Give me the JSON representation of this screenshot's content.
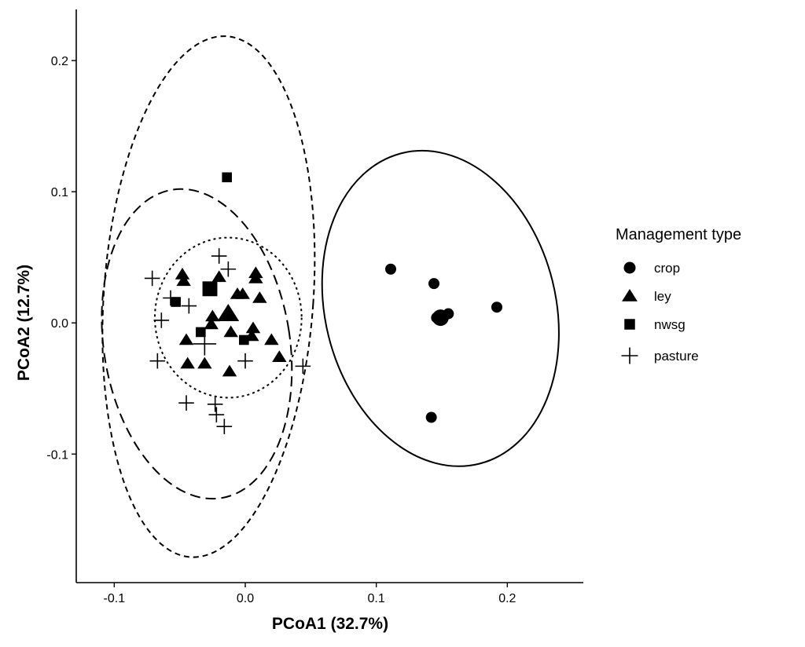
{
  "chart_data": {
    "type": "scatter",
    "xlabel": "PCoA1 (32.7%)",
    "ylabel": "PCoA2 (12.7%)",
    "xlim": [
      -0.129,
      0.258
    ],
    "ylim": [
      -0.198,
      0.239
    ],
    "xticks": [
      -0.1,
      0.0,
      0.1,
      0.2
    ],
    "xtick_labels": [
      "-0.1",
      "0.0",
      "0.1",
      "0.2"
    ],
    "yticks": [
      -0.1,
      0.0,
      0.1,
      0.2
    ],
    "ytick_labels": [
      "-0.1",
      "0.0",
      "0.1",
      "0.2"
    ],
    "grid": false,
    "legend": {
      "title": "Management type",
      "placement": "right",
      "entries": [
        {
          "label": "crop",
          "shape": "circle"
        },
        {
          "label": "ley",
          "shape": "triangle"
        },
        {
          "label": "nwsg",
          "shape": "square"
        },
        {
          "label": "pasture",
          "shape": "plus"
        }
      ]
    },
    "color": "#000000",
    "series": [
      {
        "name": "crop",
        "shape": "circle",
        "points": [
          [
            0.111,
            0.041
          ],
          [
            0.144,
            0.03
          ],
          [
            0.155,
            0.007
          ],
          [
            0.192,
            0.012
          ],
          [
            0.142,
            -0.072
          ],
          [
            0.146,
            0.004
          ]
        ],
        "centroid": [
          0.149,
          0.004
        ]
      },
      {
        "name": "ley",
        "shape": "triangle",
        "points": [
          [
            -0.048,
            0.037
          ],
          [
            -0.047,
            0.032
          ],
          [
            -0.02,
            0.035
          ],
          [
            0.008,
            0.038
          ],
          [
            0.008,
            0.034
          ],
          [
            -0.006,
            0.022
          ],
          [
            -0.002,
            0.022
          ],
          [
            0.011,
            0.019
          ],
          [
            -0.025,
            0.005
          ],
          [
            -0.026,
            -0.001
          ],
          [
            -0.011,
            -0.007
          ],
          [
            0.006,
            -0.004
          ],
          [
            0.005,
            -0.01
          ],
          [
            0.02,
            -0.013
          ],
          [
            -0.045,
            -0.013
          ],
          [
            0.026,
            -0.026
          ],
          [
            -0.044,
            -0.031
          ],
          [
            -0.031,
            -0.031
          ],
          [
            -0.012,
            -0.037
          ]
        ],
        "centroid": [
          -0.013,
          0.007
        ]
      },
      {
        "name": "nwsg",
        "shape": "square",
        "points": [
          [
            -0.014,
            0.111
          ],
          [
            -0.028,
            0.025
          ],
          [
            -0.053,
            0.016
          ],
          [
            -0.034,
            -0.007
          ],
          [
            -0.001,
            -0.013
          ]
        ],
        "centroid": [
          -0.027,
          0.026
        ]
      },
      {
        "name": "pasture",
        "shape": "plus",
        "points": [
          [
            -0.02,
            0.051
          ],
          [
            -0.013,
            0.041
          ],
          [
            -0.071,
            0.034
          ],
          [
            -0.057,
            0.019
          ],
          [
            -0.043,
            0.013
          ],
          [
            -0.064,
            0.002
          ],
          [
            -0.067,
            -0.029
          ],
          [
            0.0,
            -0.029
          ],
          [
            0.044,
            -0.033
          ],
          [
            -0.045,
            -0.061
          ],
          [
            -0.023,
            -0.062
          ],
          [
            -0.022,
            -0.07
          ],
          [
            -0.016,
            -0.079
          ]
        ],
        "centroid": [
          -0.031,
          -0.016
        ]
      }
    ],
    "ellipses": [
      {
        "group": "crop",
        "linetype": "solid",
        "center": [
          0.149,
          0.011
        ],
        "semi_axes": [
          0.088,
          0.122
        ],
        "rotation_deg": -14
      },
      {
        "group": "ley",
        "linetype": "dotted",
        "center": [
          -0.013,
          0.004
        ],
        "semi_axes": [
          0.056,
          0.061
        ],
        "rotation_deg": 0
      },
      {
        "group": "nwsg",
        "linetype": "longdash",
        "center": [
          -0.037,
          -0.016
        ],
        "semi_axes": [
          0.071,
          0.119
        ],
        "rotation_deg": -9
      },
      {
        "group": "pasture",
        "linetype": "dashed",
        "center": [
          -0.028,
          0.02
        ],
        "semi_axes": [
          0.08,
          0.199
        ],
        "rotation_deg": 4
      }
    ]
  }
}
